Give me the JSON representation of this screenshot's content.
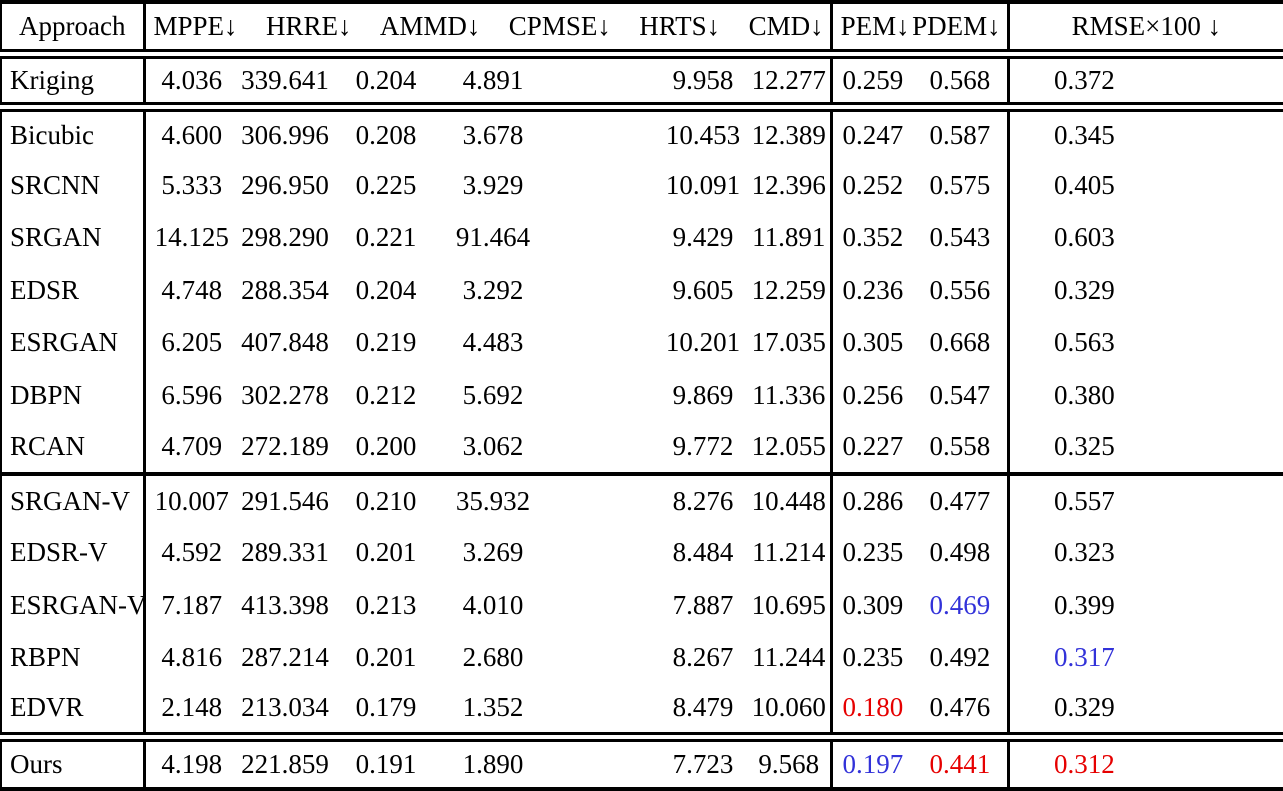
{
  "colors": {
    "blue": "#3232d9",
    "red": "#e60000",
    "text": "#000000",
    "background": "#ffffff",
    "rule": "#000000"
  },
  "header": {
    "columns": [
      "Approach",
      "MPPE↓",
      "HRRE↓",
      "AMMD↓",
      "CPMSE↓",
      "HRTS↓",
      "CMD↓",
      "PEM↓",
      "PDEM↓",
      "RMSE×100 ↓"
    ]
  },
  "rows": [
    {
      "approach": "Kriging",
      "values": [
        "4.036",
        "339.641",
        "0.204",
        "4.891",
        "9.958",
        "12.277",
        "0.259",
        "0.568",
        "0.372"
      ],
      "colors": [
        "",
        "",
        "",
        "",
        "",
        "",
        "",
        "",
        ""
      ],
      "sep_after": "double"
    },
    {
      "approach": "Bicubic",
      "values": [
        "4.600",
        "306.996",
        "0.208",
        "3.678",
        "10.453",
        "12.389",
        "0.247",
        "0.587",
        "0.345"
      ],
      "colors": [
        "",
        "",
        "",
        "",
        "",
        "",
        "",
        "",
        ""
      ],
      "sep_after": ""
    },
    {
      "approach": "SRCNN",
      "values": [
        "5.333",
        "296.950",
        "0.225",
        "3.929",
        "10.091",
        "12.396",
        "0.252",
        "0.575",
        "0.405"
      ],
      "colors": [
        "",
        "",
        "",
        "",
        "",
        "",
        "",
        "",
        ""
      ],
      "sep_after": ""
    },
    {
      "approach": "SRGAN",
      "values": [
        "14.125",
        "298.290",
        "0.221",
        "91.464",
        "9.429",
        "11.891",
        "0.352",
        "0.543",
        "0.603"
      ],
      "colors": [
        "",
        "",
        "",
        "",
        "",
        "",
        "",
        "",
        ""
      ],
      "sep_after": ""
    },
    {
      "approach": "EDSR",
      "values": [
        "4.748",
        "288.354",
        "0.204",
        "3.292",
        "9.605",
        "12.259",
        "0.236",
        "0.556",
        "0.329"
      ],
      "colors": [
        "",
        "",
        "",
        "",
        "",
        "",
        "",
        "",
        ""
      ],
      "sep_after": ""
    },
    {
      "approach": "ESRGAN",
      "values": [
        "6.205",
        "407.848",
        "0.219",
        "4.483",
        "10.201",
        "17.035",
        "0.305",
        "0.668",
        "0.563"
      ],
      "colors": [
        "",
        "",
        "",
        "",
        "",
        "",
        "",
        "",
        ""
      ],
      "sep_after": ""
    },
    {
      "approach": "DBPN",
      "values": [
        "6.596",
        "302.278",
        "0.212",
        "5.692",
        "9.869",
        "11.336",
        "0.256",
        "0.547",
        "0.380"
      ],
      "colors": [
        "",
        "",
        "",
        "",
        "",
        "",
        "",
        "",
        ""
      ],
      "sep_after": ""
    },
    {
      "approach": "RCAN",
      "values": [
        "4.709",
        "272.189",
        "0.200",
        "3.062",
        "9.772",
        "12.055",
        "0.227",
        "0.558",
        "0.325"
      ],
      "colors": [
        "",
        "",
        "",
        "",
        "",
        "",
        "",
        "",
        ""
      ],
      "sep_after": "solid"
    },
    {
      "approach": "SRGAN-V",
      "values": [
        "10.007",
        "291.546",
        "0.210",
        "35.932",
        "8.276",
        "10.448",
        "0.286",
        "0.477",
        "0.557"
      ],
      "colors": [
        "",
        "",
        "",
        "",
        "",
        "",
        "",
        "",
        ""
      ],
      "sep_after": ""
    },
    {
      "approach": "EDSR-V",
      "values": [
        "4.592",
        "289.331",
        "0.201",
        "3.269",
        "8.484",
        "11.214",
        "0.235",
        "0.498",
        "0.323"
      ],
      "colors": [
        "",
        "",
        "",
        "",
        "",
        "",
        "",
        "",
        ""
      ],
      "sep_after": ""
    },
    {
      "approach": "ESRGAN-V",
      "values": [
        "7.187",
        "413.398",
        "0.213",
        "4.010",
        "7.887",
        "10.695",
        "0.309",
        "0.469",
        "0.399"
      ],
      "colors": [
        "",
        "",
        "",
        "",
        "",
        "",
        "",
        "blue",
        ""
      ],
      "sep_after": ""
    },
    {
      "approach": "RBPN",
      "values": [
        "4.816",
        "287.214",
        "0.201",
        "2.680",
        "8.267",
        "11.244",
        "0.235",
        "0.492",
        "0.317"
      ],
      "colors": [
        "",
        "",
        "",
        "",
        "",
        "",
        "",
        "",
        "blue"
      ],
      "sep_after": ""
    },
    {
      "approach": "EDVR",
      "values": [
        "2.148",
        "213.034",
        "0.179",
        "1.352",
        "8.479",
        "10.060",
        "0.180",
        "0.476",
        "0.329"
      ],
      "colors": [
        "",
        "",
        "",
        "",
        "",
        "",
        "red",
        "",
        ""
      ],
      "sep_after": "double"
    },
    {
      "approach": "Ours",
      "values": [
        "4.198",
        "221.859",
        "0.191",
        "1.890",
        "7.723",
        "9.568",
        "0.197",
        "0.441",
        "0.312"
      ],
      "colors": [
        "",
        "",
        "",
        "",
        "",
        "",
        "blue",
        "red",
        "red"
      ],
      "sep_after": ""
    }
  ]
}
